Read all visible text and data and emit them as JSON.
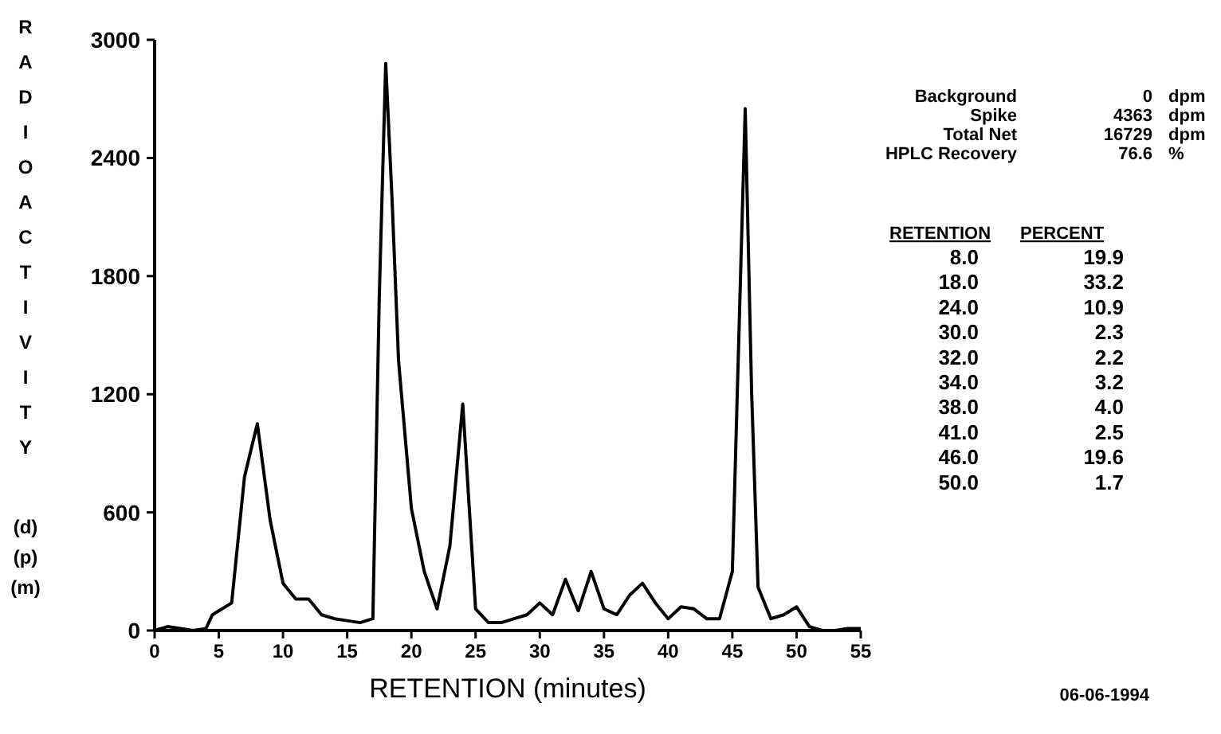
{
  "chart_data": {
    "type": "line",
    "xlabel": "RETENTION (minutes)",
    "ylabel": "RADIOACTIVITY (d)(p)(m)",
    "x": [
      0,
      1,
      2,
      3,
      4,
      4.5,
      6,
      7,
      8,
      9,
      10,
      11,
      12,
      13,
      14,
      15,
      16,
      17,
      17.5,
      18,
      18.5,
      19,
      20,
      21,
      22,
      23,
      24,
      25,
      26,
      27,
      28,
      29,
      30,
      31,
      32,
      33,
      34,
      35,
      36,
      37,
      38,
      39,
      40,
      41,
      42,
      43,
      44,
      45,
      45.5,
      46,
      46.5,
      47,
      48,
      49,
      50,
      51,
      52,
      53,
      54,
      55
    ],
    "series": [
      {
        "color": "#000000",
        "values": [
          0,
          20,
          10,
          0,
          10,
          80,
          140,
          780,
          1050,
          560,
          240,
          160,
          160,
          80,
          60,
          50,
          40,
          60,
          1700,
          2880,
          2180,
          1370,
          620,
          300,
          110,
          430,
          1150,
          110,
          40,
          40,
          60,
          80,
          140,
          80,
          260,
          100,
          300,
          110,
          80,
          180,
          240,
          140,
          60,
          120,
          110,
          60,
          60,
          300,
          1480,
          2650,
          1210,
          220,
          60,
          80,
          120,
          20,
          0,
          0,
          10,
          10
        ]
      }
    ],
    "xlim": [
      0,
      55
    ],
    "xticks": [
      0,
      5,
      10,
      15,
      20,
      25,
      30,
      35,
      40,
      45,
      50,
      55
    ],
    "ylim": [
      0,
      3000
    ],
    "yticks": [
      0,
      600,
      1200,
      1800,
      2400,
      3000
    ],
    "grid": false,
    "marker": "none",
    "line_style": "solid",
    "annotations": [
      "Background  0  dpm",
      "Spike  4363  dpm",
      "Total Net  16729  dpm",
      "HPLC Recovery  76.6  %",
      "RETENTION  PERCENT",
      "8.0  19.9",
      "18.0  33.2",
      "24.0  10.9",
      "30.0  2.3",
      "32.0  2.2",
      "34.0  3.2",
      "38.0  4.0",
      "41.0  2.5",
      "46.0  19.6",
      "50.0  1.7",
      "06-06-1994"
    ]
  }
}
